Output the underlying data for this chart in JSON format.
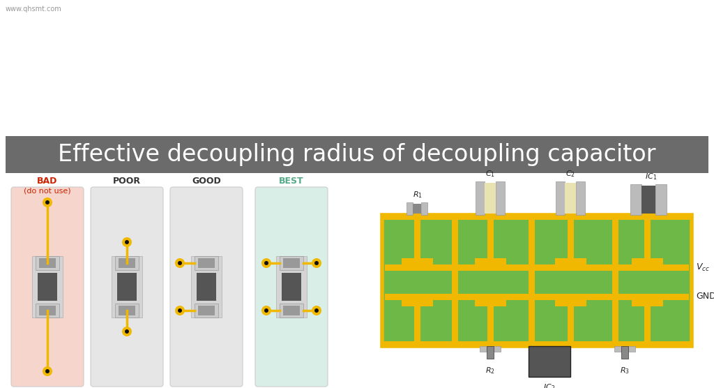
{
  "title_bar_color": "#6b6b6b",
  "title_text": "Effective decoupling radius of decoupling capacitor",
  "title_text_color": "#ffffff",
  "title_fontsize": 24,
  "bg_color": "#ffffff",
  "watermark": "www.qhsmt.com",
  "panels": [
    {
      "label": "BAD",
      "sublabel": "(do not use)",
      "label_color": "#cc2200",
      "bg": "#f5d5cc"
    },
    {
      "label": "POOR",
      "sublabel": "",
      "label_color": "#333333",
      "bg": "#e6e6e6"
    },
    {
      "label": "GOOD",
      "sublabel": "",
      "label_color": "#333333",
      "bg": "#e6e6e6"
    },
    {
      "label": "BEST",
      "sublabel": "",
      "label_color": "#55aa88",
      "bg": "#daeee8"
    }
  ],
  "pad_light": "#cccccc",
  "pad_mid": "#999999",
  "pad_dark": "#666666",
  "cap_body": "#555555",
  "via_gold": "#f0b800",
  "via_dark": "#111111",
  "wire_gold": "#f0b800",
  "pcb_green": "#6db846",
  "pcb_gold": "#f0b800",
  "pcb_gray_lt": "#bbbbbb",
  "pcb_gray_dk": "#555555",
  "pcb_cream": "#e8e3b0"
}
